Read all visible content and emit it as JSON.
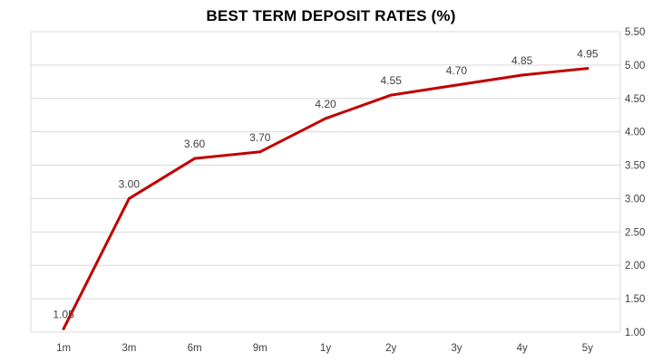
{
  "chart_data": {
    "type": "line",
    "title": "BEST TERM DEPOSIT RATES (%)",
    "xlabel": "",
    "ylabel": "",
    "categories": [
      "1m",
      "3m",
      "6m",
      "9m",
      "1y",
      "2y",
      "3y",
      "4y",
      "5y"
    ],
    "series": [
      {
        "values": [
          1.05,
          3.0,
          3.6,
          3.7,
          4.2,
          4.55,
          4.7,
          4.85,
          4.95
        ],
        "labels": [
          "1.05",
          "3.00",
          "3.60",
          "3.70",
          "4.20",
          "4.55",
          "4.70",
          "4.85",
          "4.95"
        ],
        "color": "#C00000"
      }
    ],
    "ylim": [
      1.0,
      5.5
    ],
    "ystep": 0.5,
    "y_ticks": [
      "1.00",
      "1.50",
      "2.00",
      "2.50",
      "3.00",
      "3.50",
      "4.00",
      "4.50",
      "5.00",
      "5.50"
    ],
    "y_axis_side": "right",
    "grid": true,
    "gridColor": "#D9D9D9",
    "legend": "none"
  }
}
